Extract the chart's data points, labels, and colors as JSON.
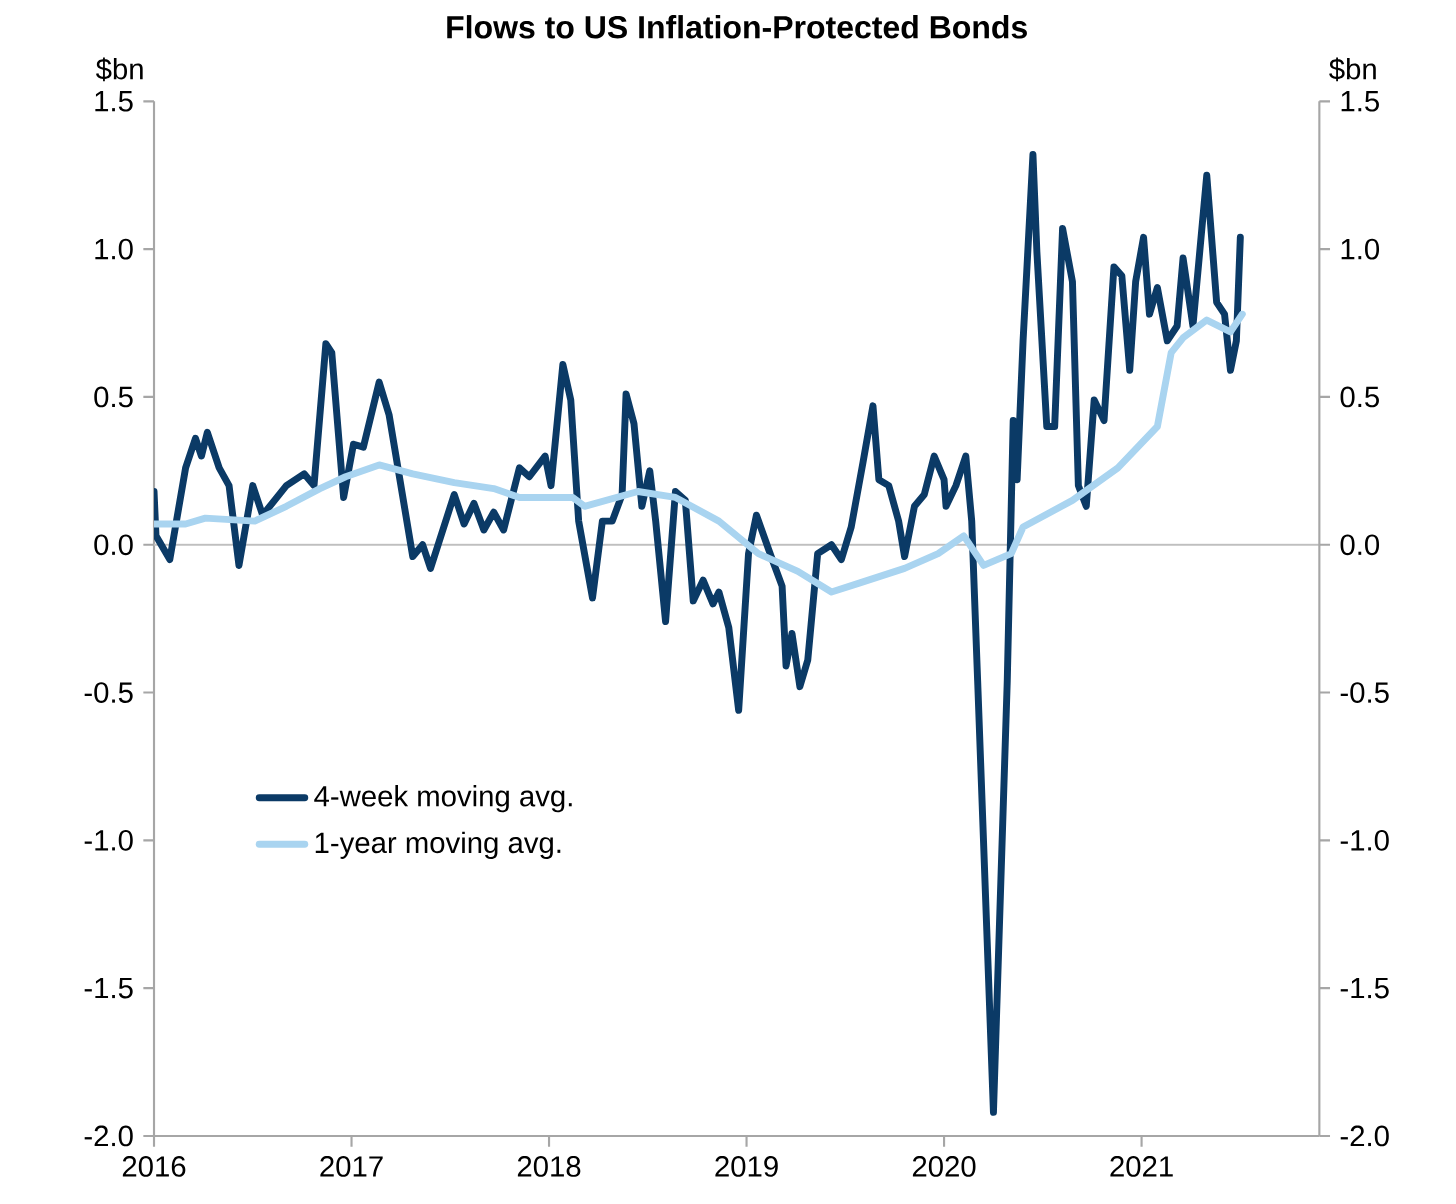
{
  "chart_data": {
    "type": "line",
    "title": "Flows to US Inflation-Protected Bonds",
    "ylabel": "$bn",
    "y2label": "$bn",
    "xlim": [
      2016,
      2021.9
    ],
    "xticks": [
      2016,
      2017,
      2018,
      2019,
      2020,
      2021
    ],
    "ylim": [
      -2,
      1.5
    ],
    "yticks": [
      {
        "value": -2,
        "label": "-2.0"
      },
      -1.5,
      {
        "value": -1,
        "label": "-1.0"
      },
      -0.5,
      {
        "value": 0,
        "label": "0.0"
      },
      0.5,
      {
        "value": 1,
        "label": "1.0"
      },
      1.5
    ],
    "y2lim": [
      -2,
      1.5
    ],
    "y2ticks": [
      {
        "value": -2,
        "label": "-2.0"
      },
      -1.5,
      {
        "value": -1,
        "label": "-1.0"
      },
      -0.5,
      {
        "value": 0,
        "label": "0.0"
      },
      0.5,
      {
        "value": 1,
        "label": "1.0"
      },
      1.5
    ],
    "legend": "left",
    "ref_lines": [
      {
        "axis": "y",
        "value": 0,
        "color": "#bfbfbf"
      }
    ],
    "series": [
      {
        "name": "4-week moving avg.",
        "color": "#0b3a66",
        "x": [
          2016.0,
          2016.01,
          2016.08,
          2016.16,
          2016.21,
          2016.24,
          2016.27,
          2016.33,
          2016.38,
          2016.43,
          2016.5,
          2016.55,
          2016.67,
          2016.76,
          2016.81,
          2016.87,
          2016.9,
          2016.96,
          2017.01,
          2017.06,
          2017.14,
          2017.19,
          2017.31,
          2017.36,
          2017.4,
          2017.52,
          2017.57,
          2017.62,
          2017.67,
          2017.72,
          2017.77,
          2017.85,
          2017.9,
          2017.98,
          2018.01,
          2018.07,
          2018.11,
          2018.15,
          2018.22,
          2018.27,
          2018.32,
          2018.37,
          2018.39,
          2018.43,
          2018.47,
          2018.51,
          2018.54,
          2018.59,
          2018.64,
          2018.69,
          2018.73,
          2018.78,
          2018.83,
          2018.86,
          2018.91,
          2018.96,
          2019.01,
          2019.05,
          2019.13,
          2019.18,
          2019.2,
          2019.23,
          2019.27,
          2019.31,
          2019.36,
          2019.43,
          2019.48,
          2019.53,
          2019.59,
          2019.64,
          2019.67,
          2019.72,
          2019.77,
          2019.8,
          2019.85,
          2019.9,
          2019.95,
          2020.0,
          2020.01,
          2020.06,
          2020.11,
          2020.14,
          2020.17,
          2020.25,
          2020.32,
          2020.35,
          2020.37,
          2020.4,
          2020.45,
          2020.47,
          2020.52,
          2020.56,
          2020.6,
          2020.65,
          2020.68,
          2020.72,
          2020.76,
          2020.81,
          2020.86,
          2020.9,
          2020.94,
          2020.97,
          2021.01,
          2021.04,
          2021.08,
          2021.13,
          2021.18,
          2021.21,
          2021.26,
          2021.33,
          2021.38,
          2021.42,
          2021.45,
          2021.48,
          2021.5
        ],
        "values": [
          0.18,
          0.03,
          -0.05,
          0.26,
          0.36,
          0.3,
          0.38,
          0.26,
          0.2,
          -0.07,
          0.2,
          0.1,
          0.2,
          0.24,
          0.2,
          0.68,
          0.65,
          0.16,
          0.34,
          0.33,
          0.55,
          0.44,
          -0.04,
          0.0,
          -0.08,
          0.17,
          0.07,
          0.14,
          0.05,
          0.11,
          0.05,
          0.26,
          0.23,
          0.3,
          0.2,
          0.61,
          0.49,
          0.08,
          -0.18,
          0.08,
          0.08,
          0.17,
          0.51,
          0.41,
          0.13,
          0.25,
          0.08,
          -0.26,
          0.18,
          0.15,
          -0.19,
          -0.12,
          -0.2,
          -0.16,
          -0.28,
          -0.56,
          -0.03,
          0.1,
          -0.05,
          -0.14,
          -0.41,
          -0.3,
          -0.48,
          -0.39,
          -0.03,
          0.0,
          -0.05,
          0.06,
          0.28,
          0.47,
          0.22,
          0.2,
          0.08,
          -0.04,
          0.13,
          0.17,
          0.3,
          0.22,
          0.13,
          0.2,
          0.3,
          0.08,
          -0.46,
          -1.92,
          -0.46,
          0.42,
          0.22,
          0.69,
          1.32,
          0.99,
          0.4,
          0.4,
          1.07,
          0.89,
          0.2,
          0.13,
          0.49,
          0.42,
          0.94,
          0.91,
          0.59,
          0.89,
          1.04,
          0.78,
          0.87,
          0.69,
          0.74,
          0.97,
          0.74,
          1.25,
          0.82,
          0.78,
          0.59,
          0.69,
          1.04
        ]
      },
      {
        "name": "1-year moving avg.",
        "color": "#a9d4f0",
        "x": [
          2016.0,
          2016.16,
          2016.26,
          2016.51,
          2016.67,
          2016.84,
          2016.97,
          2017.14,
          2017.31,
          2017.52,
          2017.72,
          2017.85,
          2018.12,
          2018.18,
          2018.45,
          2018.64,
          2018.86,
          2019.06,
          2019.26,
          2019.43,
          2019.57,
          2019.8,
          2019.97,
          2020.1,
          2020.2,
          2020.34,
          2020.4,
          2020.65,
          2020.88,
          2021.08,
          2021.15,
          2021.21,
          2021.33,
          2021.45,
          2021.51
        ],
        "values": [
          0.07,
          0.07,
          0.09,
          0.08,
          0.13,
          0.19,
          0.23,
          0.27,
          0.24,
          0.21,
          0.19,
          0.16,
          0.16,
          0.13,
          0.18,
          0.16,
          0.08,
          -0.03,
          -0.09,
          -0.16,
          -0.13,
          -0.08,
          -0.03,
          0.03,
          -0.07,
          -0.03,
          0.06,
          0.15,
          0.26,
          0.4,
          0.65,
          0.7,
          0.76,
          0.72,
          0.78
        ]
      }
    ]
  }
}
